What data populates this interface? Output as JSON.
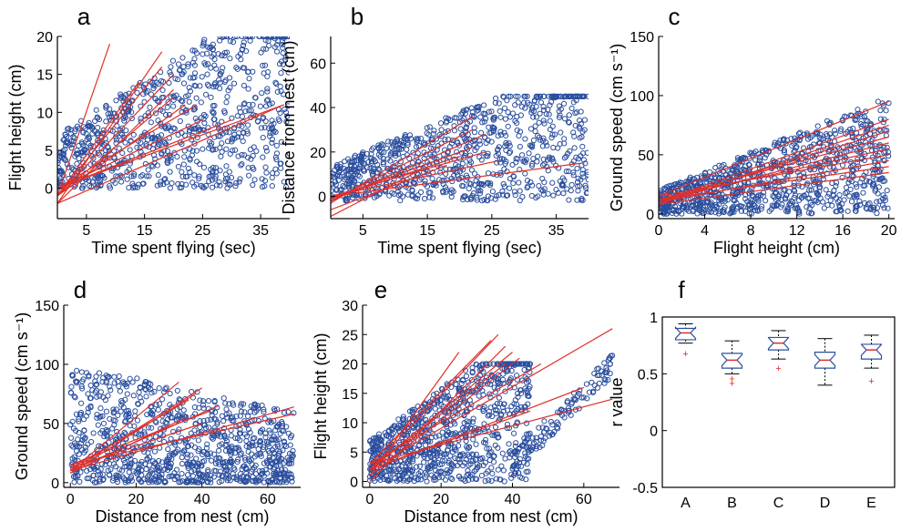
{
  "colors": {
    "points": "#2b4f9e",
    "fit_lines": "#e0302a",
    "box": "#2b4f9e",
    "median": "#e0302a",
    "outlier": "#e0302a"
  },
  "chart_data": [
    {
      "panel": "a",
      "type": "scatter",
      "xlabel": "Time spent flying (sec)",
      "ylabel": "Flight height (cm)",
      "xlim": [
        0,
        40
      ],
      "ylim": [
        -4,
        20
      ],
      "xticks": [
        5,
        15,
        25,
        35
      ],
      "yticks": [
        0,
        5,
        10,
        15,
        20
      ],
      "fits": [
        {
          "x": [
            0,
            9
          ],
          "y": [
            -1,
            19
          ]
        },
        {
          "x": [
            0,
            18
          ],
          "y": [
            -2,
            18
          ]
        },
        {
          "x": [
            0,
            14
          ],
          "y": [
            -1,
            14
          ]
        },
        {
          "x": [
            0,
            18
          ],
          "y": [
            -1,
            16
          ]
        },
        {
          "x": [
            0,
            20
          ],
          "y": [
            -1,
            15
          ]
        },
        {
          "x": [
            0,
            20
          ],
          "y": [
            -2,
            13
          ]
        },
        {
          "x": [
            0,
            20
          ],
          "y": [
            -1,
            12
          ]
        },
        {
          "x": [
            0,
            22
          ],
          "y": [
            -1,
            11
          ]
        },
        {
          "x": [
            0,
            24
          ],
          "y": [
            0,
            11
          ]
        },
        {
          "x": [
            0,
            25
          ],
          "y": [
            0,
            9
          ]
        },
        {
          "x": [
            0,
            30
          ],
          "y": [
            0,
            9
          ]
        },
        {
          "x": [
            0,
            39
          ],
          "y": [
            0,
            11
          ]
        },
        {
          "x": [
            0,
            39
          ],
          "y": [
            -2,
            11
          ]
        }
      ],
      "clusters": [
        {
          "x": [
            0,
            40
          ],
          "y": [
            0,
            20
          ],
          "n": 900,
          "shape": "band"
        }
      ]
    },
    {
      "panel": "b",
      "type": "scatter",
      "xlabel": "Time spent flying (sec)",
      "ylabel": "Distance from nest (cm)",
      "xlim": [
        0,
        40
      ],
      "ylim": [
        -10,
        72
      ],
      "xticks": [
        5,
        15,
        25,
        35
      ],
      "yticks": [
        0,
        20,
        40,
        60
      ],
      "fits": [
        {
          "x": [
            0,
            22
          ],
          "y": [
            -3,
            36
          ]
        },
        {
          "x": [
            0,
            22
          ],
          "y": [
            -2,
            30
          ]
        },
        {
          "x": [
            0,
            24
          ],
          "y": [
            -2,
            28
          ]
        },
        {
          "x": [
            0,
            22
          ],
          "y": [
            -1,
            22
          ]
        },
        {
          "x": [
            0,
            24
          ],
          "y": [
            0,
            20
          ]
        },
        {
          "x": [
            0,
            20
          ],
          "y": [
            -1,
            18
          ]
        },
        {
          "x": [
            0,
            26
          ],
          "y": [
            0,
            16
          ]
        },
        {
          "x": [
            0,
            39
          ],
          "y": [
            0,
            15
          ]
        },
        {
          "x": [
            0,
            14
          ],
          "y": [
            -9,
            12
          ]
        },
        {
          "x": [
            0,
            18
          ],
          "y": [
            -6,
            14
          ]
        }
      ],
      "clusters": [
        {
          "x": [
            0,
            40
          ],
          "y": [
            -2,
            45
          ],
          "n": 900,
          "shape": "band"
        }
      ]
    },
    {
      "panel": "c",
      "type": "scatter",
      "xlabel": "Flight height (cm)",
      "ylabel": "Ground speed (cm s⁻¹)",
      "xlim": [
        0,
        20.5
      ],
      "ylim": [
        -4,
        150
      ],
      "xticks": [
        0,
        4,
        8,
        12,
        16,
        20
      ],
      "yticks": [
        0,
        50,
        100,
        150
      ],
      "fits": [
        {
          "x": [
            0,
            20
          ],
          "y": [
            15,
            95
          ]
        },
        {
          "x": [
            0,
            20
          ],
          "y": [
            10,
            80
          ]
        },
        {
          "x": [
            0,
            20
          ],
          "y": [
            8,
            75
          ]
        },
        {
          "x": [
            0,
            20
          ],
          "y": [
            10,
            70
          ]
        },
        {
          "x": [
            0,
            20
          ],
          "y": [
            12,
            65
          ]
        },
        {
          "x": [
            0,
            20
          ],
          "y": [
            10,
            60
          ]
        },
        {
          "x": [
            0,
            20
          ],
          "y": [
            12,
            55
          ]
        },
        {
          "x": [
            0,
            20
          ],
          "y": [
            15,
            50
          ]
        },
        {
          "x": [
            0,
            20
          ],
          "y": [
            10,
            45
          ]
        },
        {
          "x": [
            0,
            20
          ],
          "y": [
            12,
            40
          ]
        },
        {
          "x": [
            0,
            20
          ],
          "y": [
            8,
            35
          ]
        }
      ],
      "clusters": [
        {
          "x": [
            0,
            20
          ],
          "y": [
            0,
            100
          ],
          "n": 1000,
          "shape": "wedge"
        }
      ]
    },
    {
      "panel": "d",
      "type": "scatter",
      "xlabel": "Distance from nest (cm)",
      "ylabel": "Ground speed (cm s⁻¹)",
      "xlim": [
        -2,
        70
      ],
      "ylim": [
        -4,
        150
      ],
      "xticks": [
        0,
        20,
        40,
        60
      ],
      "yticks": [
        0,
        50,
        100,
        150
      ],
      "fits": [
        {
          "x": [
            0,
            33
          ],
          "y": [
            10,
            85
          ]
        },
        {
          "x": [
            0,
            40
          ],
          "y": [
            10,
            80
          ]
        },
        {
          "x": [
            0,
            38
          ],
          "y": [
            8,
            75
          ]
        },
        {
          "x": [
            0,
            36
          ],
          "y": [
            12,
            70
          ]
        },
        {
          "x": [
            0,
            45
          ],
          "y": [
            10,
            65
          ]
        },
        {
          "x": [
            0,
            42
          ],
          "y": [
            15,
            60
          ]
        },
        {
          "x": [
            0,
            68
          ],
          "y": [
            10,
            64
          ]
        },
        {
          "x": [
            0,
            68
          ],
          "y": [
            15,
            58
          ]
        },
        {
          "x": [
            0,
            35
          ],
          "y": [
            8,
            55
          ]
        },
        {
          "x": [
            0,
            40
          ],
          "y": [
            12,
            50
          ]
        }
      ],
      "clusters": [
        {
          "x": [
            0,
            68
          ],
          "y": [
            0,
            100
          ],
          "n": 1000,
          "shape": "blob"
        }
      ]
    },
    {
      "panel": "e",
      "type": "scatter",
      "xlabel": "Distance from nest (cm)",
      "ylabel": "Flight height (cm)",
      "xlim": [
        -2,
        70
      ],
      "ylim": [
        -1,
        30
      ],
      "xticks": [
        0,
        20,
        40,
        60
      ],
      "yticks": [
        0,
        5,
        10,
        15,
        20,
        25,
        30
      ],
      "fits": [
        {
          "x": [
            0,
            25
          ],
          "y": [
            1,
            22
          ]
        },
        {
          "x": [
            0,
            36
          ],
          "y": [
            2,
            25
          ]
        },
        {
          "x": [
            0,
            34
          ],
          "y": [
            3,
            24
          ]
        },
        {
          "x": [
            0,
            38
          ],
          "y": [
            0,
            23
          ]
        },
        {
          "x": [
            0,
            40
          ],
          "y": [
            2,
            22
          ]
        },
        {
          "x": [
            0,
            42
          ],
          "y": [
            1,
            21
          ]
        },
        {
          "x": [
            0,
            38
          ],
          "y": [
            2,
            20
          ]
        },
        {
          "x": [
            0,
            68
          ],
          "y": [
            2,
            26
          ]
        },
        {
          "x": [
            0,
            48
          ],
          "y": [
            3,
            20
          ]
        },
        {
          "x": [
            0,
            60
          ],
          "y": [
            2,
            16
          ]
        },
        {
          "x": [
            0,
            68
          ],
          "y": [
            3,
            14
          ]
        },
        {
          "x": [
            0,
            45
          ],
          "y": [
            2,
            12
          ]
        }
      ],
      "clusters": [
        {
          "x": [
            0,
            45
          ],
          "y": [
            0,
            20
          ],
          "n": 900,
          "shape": "band"
        },
        {
          "x": [
            40,
            68
          ],
          "y": [
            3,
            20
          ],
          "n": 120,
          "shape": "trail"
        }
      ]
    },
    {
      "panel": "f",
      "type": "box",
      "xlabel": "",
      "ylabel": "r value",
      "ylim": [
        -0.5,
        1
      ],
      "yticks": [
        -0.5,
        0,
        0.5,
        1
      ],
      "categories": [
        "A",
        "B",
        "C",
        "D",
        "E"
      ],
      "boxes": [
        {
          "min": 0.77,
          "q1": 0.8,
          "median": 0.86,
          "q3": 0.9,
          "max": 0.94,
          "outliers": [
            0.68
          ]
        },
        {
          "min": 0.5,
          "q1": 0.55,
          "median": 0.62,
          "q3": 0.68,
          "max": 0.79,
          "outliers": [
            0.42,
            0.46
          ]
        },
        {
          "min": 0.63,
          "q1": 0.71,
          "median": 0.77,
          "q3": 0.82,
          "max": 0.88,
          "outliers": [
            0.55
          ]
        },
        {
          "min": 0.4,
          "q1": 0.55,
          "median": 0.62,
          "q3": 0.69,
          "max": 0.81,
          "outliers": []
        },
        {
          "min": 0.55,
          "q1": 0.63,
          "median": 0.71,
          "q3": 0.76,
          "max": 0.84,
          "outliers": [
            0.44
          ]
        }
      ]
    }
  ]
}
